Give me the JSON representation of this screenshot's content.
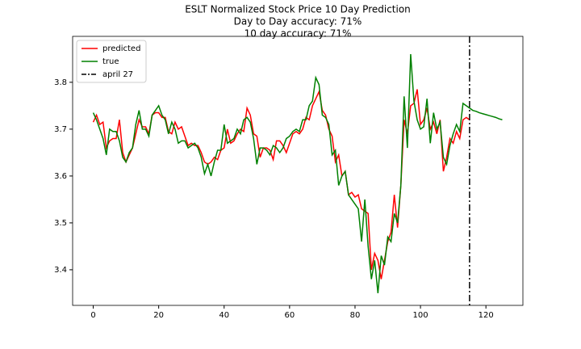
{
  "chart_data": {
    "type": "line",
    "title": [
      "ESLT Normalized Stock Price 10 Day Prediction",
      "Day to Day accuracy: 71%",
      "10 day accuracy: 71%"
    ],
    "x": [
      0,
      1,
      2,
      3,
      4,
      5,
      6,
      7,
      8,
      9,
      10,
      11,
      12,
      13,
      14,
      15,
      16,
      17,
      18,
      19,
      20,
      21,
      22,
      23,
      24,
      25,
      26,
      27,
      28,
      29,
      30,
      31,
      32,
      33,
      34,
      35,
      36,
      37,
      38,
      39,
      40,
      41,
      42,
      43,
      44,
      45,
      46,
      47,
      48,
      49,
      50,
      51,
      52,
      53,
      54,
      55,
      56,
      57,
      58,
      59,
      60,
      61,
      62,
      63,
      64,
      65,
      66,
      67,
      68,
      69,
      70,
      71,
      72,
      73,
      74,
      75,
      76,
      77,
      78,
      79,
      80,
      81,
      82,
      83,
      84,
      85,
      86,
      87,
      88,
      89,
      90,
      91,
      92,
      93,
      94,
      95,
      96,
      97,
      98,
      99,
      100,
      101,
      102,
      103,
      104,
      105,
      106,
      107,
      108,
      109,
      110,
      111,
      112,
      113,
      114,
      115,
      116,
      117,
      118,
      119,
      120,
      121,
      122,
      123,
      124,
      125
    ],
    "series": [
      {
        "name": "predicted",
        "color": "#ff0000",
        "values": [
          3.715,
          3.73,
          3.71,
          3.715,
          3.66,
          3.675,
          3.68,
          3.68,
          3.72,
          3.65,
          3.63,
          3.645,
          3.66,
          3.69,
          3.72,
          3.705,
          3.705,
          3.69,
          3.73,
          3.735,
          3.735,
          3.725,
          3.725,
          3.695,
          3.69,
          3.715,
          3.7,
          3.705,
          3.685,
          3.665,
          3.67,
          3.665,
          3.665,
          3.65,
          3.63,
          3.625,
          3.63,
          3.64,
          3.635,
          3.655,
          3.66,
          3.7,
          3.67,
          3.675,
          3.69,
          3.7,
          3.695,
          3.745,
          3.73,
          3.69,
          3.685,
          3.64,
          3.66,
          3.66,
          3.655,
          3.635,
          3.675,
          3.675,
          3.665,
          3.65,
          3.67,
          3.69,
          3.695,
          3.69,
          3.7,
          3.725,
          3.72,
          3.75,
          3.765,
          3.78,
          3.74,
          3.73,
          3.7,
          3.685,
          3.63,
          3.645,
          3.6,
          3.61,
          3.56,
          3.565,
          3.555,
          3.56,
          3.53,
          3.525,
          3.52,
          3.4,
          3.435,
          3.42,
          3.38,
          3.42,
          3.46,
          3.48,
          3.56,
          3.49,
          3.58,
          3.72,
          3.69,
          3.75,
          3.755,
          3.785,
          3.71,
          3.72,
          3.745,
          3.7,
          3.715,
          3.69,
          3.72,
          3.61,
          3.64,
          3.68,
          3.67,
          3.695,
          3.68,
          3.72,
          3.725,
          3.72,
          null,
          null,
          null,
          null,
          null,
          null,
          null,
          null,
          null,
          null
        ]
      },
      {
        "name": "true",
        "color": "#008000",
        "values": [
          3.735,
          3.72,
          3.7,
          3.68,
          3.645,
          3.7,
          3.695,
          3.695,
          3.675,
          3.64,
          3.63,
          3.65,
          3.66,
          3.71,
          3.74,
          3.7,
          3.7,
          3.685,
          3.73,
          3.74,
          3.75,
          3.73,
          3.72,
          3.69,
          3.715,
          3.7,
          3.67,
          3.675,
          3.675,
          3.66,
          3.665,
          3.67,
          3.66,
          3.64,
          3.605,
          3.625,
          3.6,
          3.63,
          3.655,
          3.655,
          3.71,
          3.67,
          3.675,
          3.68,
          3.7,
          3.69,
          3.72,
          3.725,
          3.715,
          3.68,
          3.625,
          3.66,
          3.66,
          3.655,
          3.645,
          3.665,
          3.66,
          3.65,
          3.66,
          3.68,
          3.685,
          3.695,
          3.7,
          3.695,
          3.72,
          3.72,
          3.75,
          3.76,
          3.81,
          3.795,
          3.73,
          3.725,
          3.71,
          3.645,
          3.655,
          3.58,
          3.6,
          3.61,
          3.56,
          3.55,
          3.54,
          3.53,
          3.46,
          3.55,
          3.45,
          3.38,
          3.42,
          3.35,
          3.43,
          3.41,
          3.47,
          3.46,
          3.52,
          3.5,
          3.58,
          3.77,
          3.66,
          3.86,
          3.76,
          3.72,
          3.7,
          3.705,
          3.765,
          3.67,
          3.735,
          3.7,
          3.715,
          3.64,
          3.625,
          3.665,
          3.69,
          3.71,
          3.695,
          3.755,
          3.75,
          3.745,
          3.74,
          3.738,
          3.735,
          3.733,
          3.731,
          3.729,
          3.727,
          3.725,
          3.722,
          3.72
        ]
      }
    ],
    "vline": {
      "x": 115,
      "label": "april 27",
      "color": "#000000"
    },
    "xlim": [
      -6.3,
      131.3
    ],
    "ylim": [
      3.324,
      3.898
    ],
    "xticks": [
      0,
      20,
      40,
      60,
      80,
      100,
      120
    ],
    "yticks": [
      3.4,
      3.5,
      3.6,
      3.7,
      3.8
    ],
    "legend": "upper left"
  }
}
